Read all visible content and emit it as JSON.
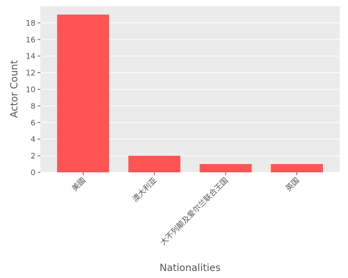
{
  "chart_data": {
    "type": "bar",
    "xlabel": "Nationalities",
    "ylabel": "Actor Count",
    "categories": [
      "美國",
      "澳大利亚",
      "大不列颠及爱尔兰联合王国",
      "英国"
    ],
    "values": [
      19,
      2,
      1,
      1
    ],
    "color": "#ff5555",
    "ylim": [
      0,
      20
    ],
    "yticks": [
      0,
      2,
      4,
      6,
      8,
      10,
      12,
      14,
      16,
      18
    ],
    "grid": true
  }
}
